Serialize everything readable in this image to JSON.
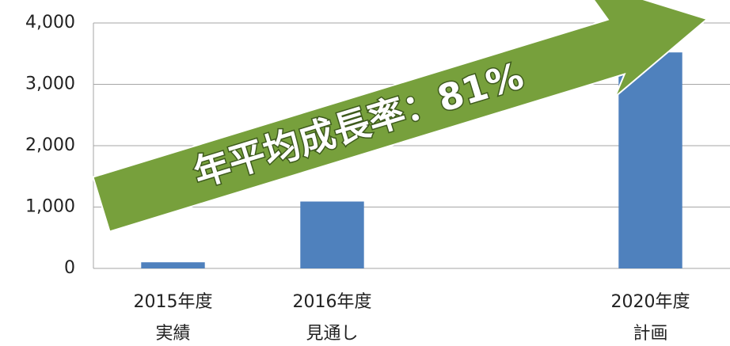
{
  "chart_data": {
    "type": "bar",
    "annotation": "年平均成長率：81%",
    "categories": [
      "2015年度\n実績",
      "2016年度\n見通し",
      null,
      "2020年度\n計画"
    ],
    "values": [
      100,
      1090,
      null,
      3520
    ],
    "color": "#4f81bd",
    "ylim": [
      0,
      4000
    ],
    "yticks": [
      0,
      {
        "value": 1000,
        "label": "1,000"
      },
      {
        "value": 2000,
        "label": "2,000"
      },
      {
        "value": 3000,
        "label": "3,000"
      },
      {
        "value": 4000,
        "label": "4,000"
      }
    ],
    "grid": true
  }
}
